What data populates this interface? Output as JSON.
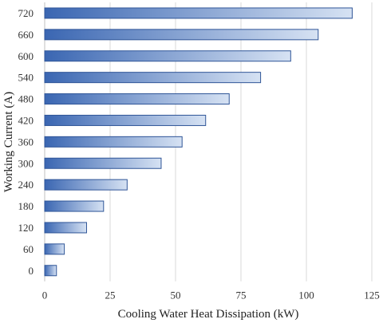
{
  "chart_data": {
    "type": "bar",
    "orientation": "horizontal",
    "title": "",
    "xlabel": "Cooling Water Heat Dissipation (kW)",
    "ylabel": "Working Current (A)",
    "categories": [
      "0",
      "60",
      "120",
      "180",
      "240",
      "300",
      "360",
      "420",
      "480",
      "540",
      "600",
      "660",
      "720"
    ],
    "values": [
      4.5,
      7.5,
      16,
      22.5,
      31.5,
      44.5,
      52.5,
      61.5,
      70.5,
      82.5,
      94,
      104.5,
      117.5
    ],
    "xlim": [
      0,
      125
    ],
    "xticks": [
      "0",
      "25",
      "50",
      "75",
      "100",
      "125"
    ],
    "grid": true,
    "legend": "none",
    "colors": {
      "bar_start": "#3a66b2",
      "bar_end": "#d6e2f3",
      "bar_border": "#2f5597"
    }
  }
}
